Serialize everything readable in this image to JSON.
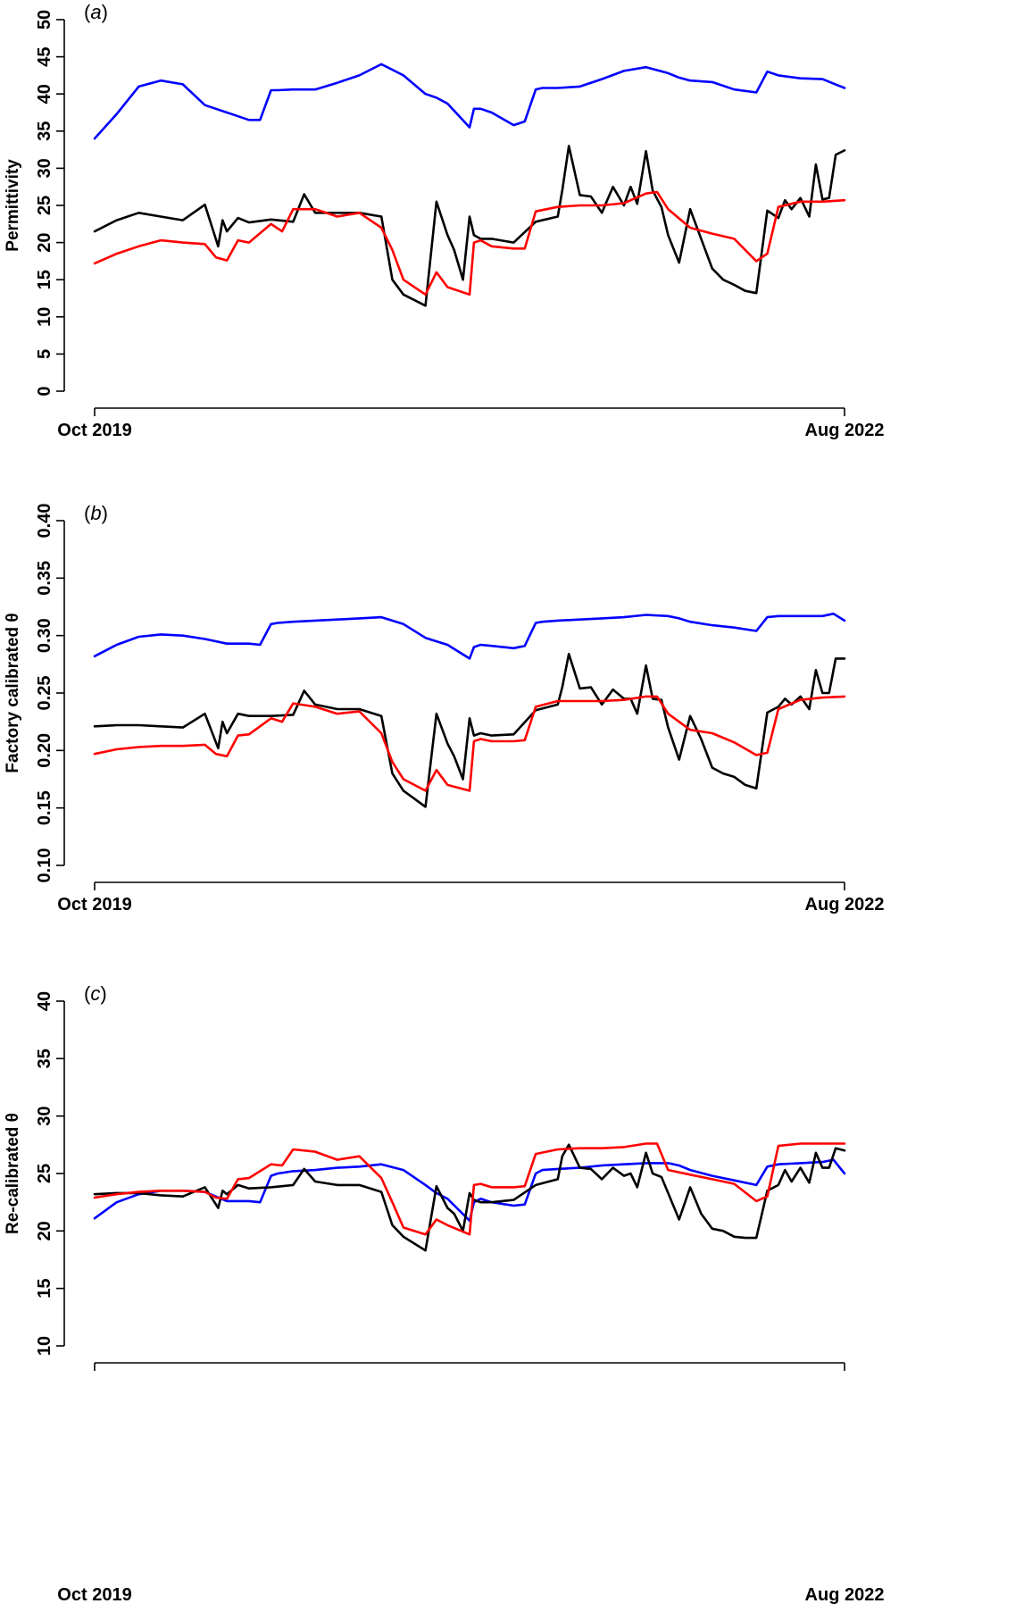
{
  "chart_data": [
    {
      "type": "line",
      "panel_label": "a",
      "title": "",
      "xlabel": "",
      "ylabel": "Permittivity",
      "ylim": [
        0,
        50
      ],
      "y_ticks": [
        0,
        5,
        10,
        15,
        20,
        25,
        30,
        35,
        40,
        45,
        50
      ],
      "y_tick_labels": [
        "0",
        "5",
        "10",
        "15",
        "20",
        "25",
        "30",
        "35",
        "40",
        "45",
        "50"
      ],
      "xlim": [
        0,
        34
      ],
      "x_tick_positions": [
        0,
        34
      ],
      "x_tick_labels": [
        "Oct 2019",
        "Aug 2022"
      ],
      "grid": false,
      "legend": "none",
      "series": [
        {
          "color": "#0000ff",
          "x": [
            0,
            1,
            2,
            3,
            4,
            5,
            6,
            7,
            7.5,
            8,
            8.3,
            9,
            10,
            11,
            12,
            13,
            14,
            15,
            15.5,
            16,
            17,
            17.2,
            17.5,
            18,
            19,
            19.5,
            20,
            20.3,
            21,
            22,
            23,
            24,
            25,
            26,
            26.5,
            27,
            28,
            29,
            30,
            30.5,
            31,
            32,
            33,
            33.5,
            34
          ],
          "y": [
            34,
            37.3,
            41,
            41.8,
            41.3,
            38.5,
            37.5,
            36.5,
            36.5,
            40.5,
            40.5,
            40.6,
            40.6,
            41.5,
            42.5,
            44,
            42.5,
            40,
            39.5,
            38.7,
            35.5,
            38,
            38,
            37.5,
            35.8,
            36.3,
            40.6,
            40.8,
            40.8,
            41,
            42,
            43.1,
            43.6,
            42.8,
            42.2,
            41.8,
            41.6,
            40.6,
            40.2,
            43,
            42.5,
            42.1,
            42,
            41.4,
            40.8
          ]
        },
        {
          "color": "#000000",
          "x": [
            0,
            1,
            2,
            3,
            4,
            5,
            5.6,
            5.8,
            6,
            6.5,
            7,
            8,
            9,
            9.5,
            10,
            11,
            12,
            13,
            13.5,
            14,
            15,
            15.5,
            16,
            16.3,
            16.7,
            17,
            17.2,
            17.5,
            18,
            19,
            20,
            21,
            21.2,
            21.5,
            22,
            22.5,
            23,
            23.5,
            24,
            24.3,
            24.6,
            25,
            25.3,
            25.7,
            26,
            26.5,
            27,
            27.5,
            28,
            28.5,
            29,
            29.5,
            30,
            30.5,
            31,
            31.3,
            31.6,
            32,
            32.4,
            32.7,
            33,
            33.3,
            33.6,
            34
          ],
          "y": [
            21.5,
            23,
            24,
            23.5,
            23,
            25.1,
            19.5,
            23,
            21.5,
            23.3,
            22.7,
            23.1,
            22.8,
            26.5,
            24,
            24,
            24,
            23.5,
            15,
            13,
            11.5,
            25.5,
            21,
            19,
            15,
            23.5,
            21,
            20.5,
            20.5,
            20,
            22.8,
            23.5,
            27,
            33,
            26.4,
            26.2,
            24,
            27.5,
            25,
            27.5,
            25.2,
            32.3,
            27,
            24.8,
            21,
            17.3,
            24.5,
            20.5,
            16.5,
            15,
            14.3,
            13.5,
            13.2,
            24.3,
            23.3,
            25.7,
            24.5,
            26,
            23.5,
            30.5,
            25.8,
            26,
            31.8,
            32.4
          ]
        },
        {
          "color": "#ff0000",
          "x": [
            0,
            1,
            2,
            3,
            4,
            5,
            5.5,
            6,
            6.5,
            7,
            8,
            8.5,
            9,
            10,
            11,
            12,
            13,
            13.5,
            14,
            15,
            15.5,
            16,
            17,
            17.2,
            17.5,
            18,
            19,
            19.5,
            20,
            21,
            22,
            23,
            24,
            25,
            25.5,
            26,
            27,
            28,
            29,
            30,
            30.5,
            31,
            32,
            33,
            34
          ],
          "y": [
            17.2,
            18.5,
            19.5,
            20.3,
            20,
            19.8,
            18,
            17.6,
            20.3,
            20,
            22.5,
            21.5,
            24.5,
            24.5,
            23.5,
            24,
            22,
            19,
            15,
            13,
            16,
            14,
            13,
            20,
            20.3,
            19.5,
            19.2,
            19.2,
            24.2,
            24.8,
            25,
            25,
            25.3,
            26.6,
            26.8,
            24.5,
            22,
            21.2,
            20.5,
            17.5,
            18.5,
            24.8,
            25.5,
            25.5,
            25.7
          ]
        }
      ]
    },
    {
      "type": "line",
      "panel_label": "b",
      "title": "",
      "xlabel": "",
      "ylabel": "Factory calibrated θ",
      "ylim": [
        0.1,
        0.4
      ],
      "y_ticks": [
        0.1,
        0.15,
        0.2,
        0.25,
        0.3,
        0.35,
        0.4
      ],
      "y_tick_labels": [
        "0.10",
        "0.15",
        "0.20",
        "0.25",
        "0.30",
        "0.35",
        "0.40"
      ],
      "xlim": [
        0,
        34
      ],
      "x_tick_positions": [
        0,
        34
      ],
      "x_tick_labels": [
        "Oct 2019",
        "Aug 2022"
      ],
      "grid": false,
      "legend": "none",
      "series": [
        {
          "color": "#0000ff",
          "x": [
            0,
            1,
            2,
            3,
            4,
            5,
            6,
            7,
            7.5,
            8,
            8.3,
            9,
            10,
            11,
            12,
            13,
            14,
            15,
            15.5,
            16,
            17,
            17.2,
            17.5,
            18,
            19,
            19.5,
            20,
            20.3,
            21,
            22,
            23,
            24,
            25,
            26,
            26.5,
            27,
            28,
            29,
            30,
            30.5,
            31,
            32,
            33,
            33.5,
            34
          ],
          "y": [
            0.282,
            0.292,
            0.299,
            0.301,
            0.3,
            0.297,
            0.293,
            0.293,
            0.292,
            0.31,
            0.311,
            0.312,
            0.313,
            0.314,
            0.315,
            0.316,
            0.31,
            0.298,
            0.295,
            0.292,
            0.28,
            0.29,
            0.292,
            0.291,
            0.289,
            0.291,
            0.311,
            0.312,
            0.313,
            0.314,
            0.315,
            0.316,
            0.318,
            0.317,
            0.315,
            0.312,
            0.309,
            0.307,
            0.304,
            0.316,
            0.317,
            0.317,
            0.317,
            0.319,
            0.313
          ]
        },
        {
          "color": "#000000",
          "x": [
            0,
            1,
            2,
            3,
            4,
            5,
            5.6,
            5.8,
            6,
            6.5,
            7,
            8,
            9,
            9.5,
            10,
            11,
            12,
            13,
            13.5,
            14,
            15,
            15.5,
            16,
            16.3,
            16.7,
            17,
            17.2,
            17.5,
            18,
            19,
            20,
            21,
            21.2,
            21.5,
            22,
            22.5,
            23,
            23.5,
            24,
            24.3,
            24.6,
            25,
            25.3,
            25.7,
            26,
            26.5,
            27,
            27.5,
            28,
            28.5,
            29,
            29.5,
            30,
            30.5,
            31,
            31.3,
            31.6,
            32,
            32.4,
            32.7,
            33,
            33.3,
            33.6,
            34
          ],
          "y": [
            0.221,
            0.222,
            0.222,
            0.221,
            0.22,
            0.232,
            0.202,
            0.225,
            0.215,
            0.232,
            0.23,
            0.23,
            0.231,
            0.252,
            0.24,
            0.236,
            0.236,
            0.23,
            0.18,
            0.165,
            0.151,
            0.232,
            0.206,
            0.195,
            0.175,
            0.228,
            0.213,
            0.215,
            0.213,
            0.214,
            0.235,
            0.24,
            0.255,
            0.284,
            0.254,
            0.255,
            0.24,
            0.253,
            0.245,
            0.245,
            0.232,
            0.274,
            0.245,
            0.244,
            0.22,
            0.192,
            0.23,
            0.21,
            0.185,
            0.18,
            0.177,
            0.17,
            0.167,
            0.233,
            0.238,
            0.245,
            0.24,
            0.247,
            0.236,
            0.27,
            0.25,
            0.25,
            0.28,
            0.28
          ]
        },
        {
          "color": "#ff0000",
          "x": [
            0,
            1,
            2,
            3,
            4,
            5,
            5.5,
            6,
            6.5,
            7,
            8,
            8.5,
            9,
            10,
            11,
            12,
            13,
            13.5,
            14,
            15,
            15.5,
            16,
            17,
            17.2,
            17.5,
            18,
            19,
            19.5,
            20,
            21,
            22,
            23,
            24,
            25,
            25.5,
            26,
            27,
            28,
            29,
            30,
            30.5,
            31,
            32,
            33,
            34
          ],
          "y": [
            0.197,
            0.201,
            0.203,
            0.204,
            0.204,
            0.205,
            0.197,
            0.195,
            0.213,
            0.214,
            0.228,
            0.225,
            0.241,
            0.238,
            0.232,
            0.234,
            0.215,
            0.19,
            0.175,
            0.165,
            0.183,
            0.17,
            0.165,
            0.208,
            0.21,
            0.208,
            0.208,
            0.209,
            0.238,
            0.243,
            0.243,
            0.243,
            0.244,
            0.247,
            0.247,
            0.232,
            0.218,
            0.215,
            0.207,
            0.196,
            0.198,
            0.236,
            0.244,
            0.246,
            0.247
          ]
        }
      ]
    },
    {
      "type": "line",
      "panel_label": "c",
      "title": "",
      "xlabel": "",
      "ylabel": "Re-calibrated θ",
      "ylim": [
        10,
        40
      ],
      "y_ticks": [
        10,
        15,
        20,
        25,
        30,
        35,
        40
      ],
      "y_tick_labels": [
        "10",
        "15",
        "20",
        "25",
        "30",
        "35",
        "40"
      ],
      "xlim": [
        0,
        34
      ],
      "x_tick_positions": [
        0,
        34
      ],
      "x_tick_labels": [
        "Oct 2019",
        "Aug 2022"
      ],
      "grid": false,
      "legend": "none",
      "series": [
        {
          "color": "#0000ff",
          "x": [
            0,
            1,
            2,
            3,
            4,
            5,
            6,
            7,
            7.5,
            8,
            8.3,
            9,
            10,
            11,
            12,
            13,
            14,
            15,
            15.5,
            16,
            17,
            17.2,
            17.5,
            18,
            19,
            19.5,
            20,
            20.3,
            21,
            22,
            23,
            24,
            25,
            26,
            26.5,
            27,
            28,
            29,
            30,
            30.5,
            31,
            32,
            33,
            33.5,
            34
          ],
          "y": [
            21.1,
            22.5,
            23.2,
            23.5,
            23.5,
            23.4,
            22.6,
            22.6,
            22.5,
            24.8,
            25,
            25.2,
            25.3,
            25.5,
            25.6,
            25.8,
            25.3,
            24,
            23.3,
            22.8,
            20.9,
            22.5,
            22.8,
            22.5,
            22.2,
            22.3,
            25,
            25.3,
            25.4,
            25.5,
            25.7,
            25.8,
            25.9,
            25.9,
            25.7,
            25.3,
            24.8,
            24.4,
            24,
            25.6,
            25.8,
            25.9,
            26,
            26.2,
            25
          ]
        },
        {
          "color": "#000000",
          "x": [
            0,
            1,
            2,
            3,
            4,
            5,
            5.6,
            5.8,
            6,
            6.5,
            7,
            8,
            9,
            9.5,
            10,
            11,
            12,
            13,
            13.5,
            14,
            15,
            15.5,
            16,
            16.3,
            16.7,
            17,
            17.2,
            17.5,
            18,
            19,
            20,
            21,
            21.2,
            21.5,
            22,
            22.5,
            23,
            23.5,
            24,
            24.3,
            24.6,
            25,
            25.3,
            25.7,
            26,
            26.5,
            27,
            27.5,
            28,
            28.5,
            29,
            29.5,
            30,
            30.5,
            31,
            31.3,
            31.6,
            32,
            32.4,
            32.7,
            33,
            33.3,
            33.6,
            34
          ],
          "y": [
            23.2,
            23.3,
            23.3,
            23.1,
            23,
            23.8,
            22,
            23.5,
            23.2,
            24,
            23.7,
            23.8,
            24,
            25.4,
            24.3,
            24,
            24,
            23.4,
            20.5,
            19.5,
            18.3,
            23.9,
            22,
            21.5,
            20,
            23.3,
            22.7,
            22.5,
            22.5,
            22.7,
            24,
            24.5,
            26.5,
            27.5,
            25.5,
            25.4,
            24.5,
            25.5,
            24.8,
            25,
            23.8,
            26.8,
            25,
            24.7,
            23.3,
            21,
            23.8,
            21.5,
            20.2,
            20,
            19.5,
            19.4,
            19.4,
            23.5,
            24,
            25.3,
            24.3,
            25.5,
            24.2,
            26.8,
            25.5,
            25.5,
            27.2,
            27
          ]
        },
        {
          "color": "#ff0000",
          "x": [
            0,
            1,
            2,
            3,
            4,
            5,
            5.5,
            6,
            6.5,
            7,
            8,
            8.5,
            9,
            10,
            11,
            12,
            13,
            13.5,
            14,
            15,
            15.5,
            16,
            17,
            17.2,
            17.5,
            18,
            19,
            19.5,
            20,
            21,
            22,
            23,
            24,
            25,
            25.5,
            26,
            27,
            28,
            29,
            30,
            30.5,
            31,
            32,
            33,
            34
          ],
          "y": [
            22.9,
            23.2,
            23.4,
            23.5,
            23.5,
            23.4,
            22.9,
            22.8,
            24.5,
            24.6,
            25.8,
            25.7,
            27.1,
            26.9,
            26.2,
            26.5,
            24.6,
            22.5,
            20.3,
            19.7,
            21,
            20.5,
            19.7,
            24,
            24.1,
            23.8,
            23.8,
            23.9,
            26.7,
            27.1,
            27.2,
            27.2,
            27.3,
            27.6,
            27.6,
            25.3,
            24.9,
            24.5,
            24.1,
            22.6,
            23,
            27.4,
            27.6,
            27.6,
            27.6
          ]
        }
      ]
    }
  ]
}
